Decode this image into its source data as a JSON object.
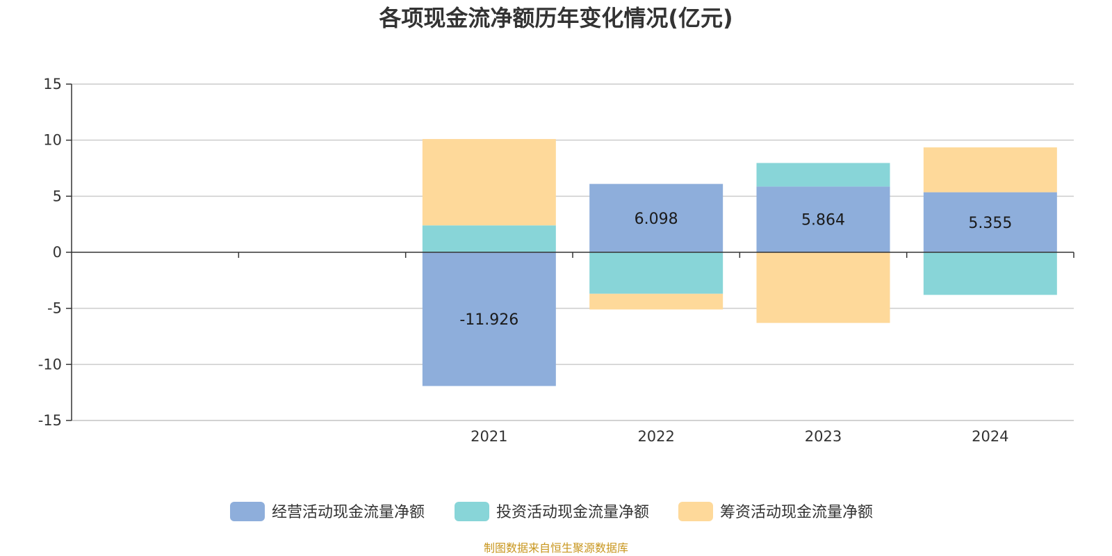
{
  "colors": {
    "series": [
      "#8eaedb",
      "#88d5d8",
      "#fed99a"
    ],
    "grid": "#cccccc",
    "axis": "#333333",
    "source": "#c8961e"
  },
  "chart_data": {
    "type": "bar",
    "stacked": true,
    "title": "各项现金流净额历年变化情况(亿元)",
    "categories": [
      "",
      "",
      "2021",
      "2022",
      "2023",
      "2024"
    ],
    "ylim": [
      -15,
      15
    ],
    "yticks": [
      15,
      10,
      5,
      0,
      -5,
      -10,
      -15
    ],
    "grid": true,
    "legend_position": "bottom",
    "series": [
      {
        "name": "经营活动现金流量净额",
        "values": [
          null,
          null,
          -11.926,
          6.098,
          5.864,
          5.355
        ],
        "labels": [
          "",
          "",
          "-11.926",
          "6.098",
          "5.864",
          "5.355"
        ]
      },
      {
        "name": "投资活动现金流量净额",
        "values": [
          null,
          null,
          2.4,
          -3.7,
          2.1,
          -3.8
        ]
      },
      {
        "name": "筹资活动现金流量净额",
        "values": [
          null,
          null,
          7.7,
          -1.4,
          -6.3,
          4.0
        ]
      }
    ],
    "source": "制图数据来自恒生聚源数据库"
  }
}
